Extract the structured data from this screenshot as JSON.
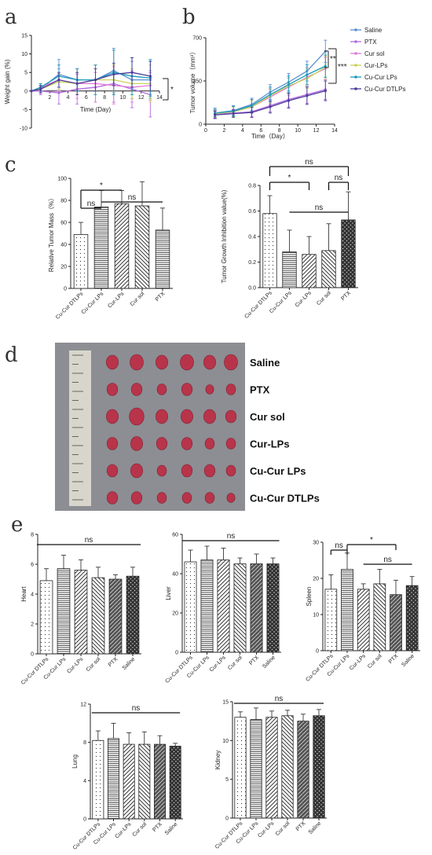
{
  "panel_labels": {
    "a": "a",
    "b": "b",
    "c": "c",
    "d": "d",
    "e": "e"
  },
  "chart_data": [
    {
      "id": "a",
      "type": "line",
      "ylabel": "Weight gain (%)",
      "xlabel": "Time  (Day)",
      "ylim": [
        -10,
        15
      ],
      "yticks": [
        -10,
        -5,
        0,
        5,
        10,
        15
      ],
      "xlim": [
        0,
        14
      ],
      "xticks": [
        2,
        4,
        6,
        8,
        10,
        12,
        14
      ],
      "series": [
        {
          "name": "Saline",
          "color": "#5b8fd0",
          "x": [
            0,
            1,
            3,
            5,
            7,
            9,
            11,
            13
          ],
          "y": [
            0,
            0.5,
            4.5,
            3,
            3,
            5.5,
            3,
            3
          ],
          "err": [
            0,
            1,
            4,
            3,
            4,
            6,
            5,
            5
          ]
        },
        {
          "name": "PTX",
          "color": "#b36be0",
          "x": [
            0,
            1,
            3,
            5,
            7,
            9,
            11,
            13
          ],
          "y": [
            0,
            0,
            -0.5,
            0.5,
            1,
            2,
            0.5,
            -1
          ],
          "err": [
            0,
            1,
            3,
            4,
            4,
            5,
            5,
            6
          ]
        },
        {
          "name": "Cur sol",
          "color": "#e07bd8",
          "x": [
            0,
            1,
            3,
            5,
            7,
            9,
            11,
            13
          ],
          "y": [
            0,
            1,
            3,
            2,
            2,
            1.5,
            1,
            1.5
          ],
          "err": [
            0,
            1,
            3,
            4,
            5,
            5,
            4,
            4
          ]
        },
        {
          "name": "Cur-LPs",
          "color": "#c9d25a",
          "x": [
            0,
            1,
            3,
            5,
            7,
            9,
            11,
            13
          ],
          "y": [
            0,
            0.5,
            2.5,
            2,
            3,
            3,
            2,
            2
          ],
          "err": [
            0,
            1,
            2,
            3,
            4,
            4,
            4,
            5
          ]
        },
        {
          "name": "Cu-Cur LPs",
          "color": "#1a9ab8",
          "x": [
            0,
            1,
            3,
            5,
            7,
            9,
            11,
            13
          ],
          "y": [
            0,
            1,
            4,
            3,
            3,
            5,
            4,
            3.5
          ],
          "err": [
            0,
            1,
            3,
            3,
            4,
            6,
            5,
            5
          ]
        },
        {
          "name": "Cu-Cur DTLPs",
          "color": "#4b3a9a",
          "x": [
            0,
            1,
            3,
            5,
            7,
            9,
            11,
            13
          ],
          "y": [
            0,
            0.5,
            3,
            2,
            3,
            4.5,
            5,
            4
          ],
          "err": [
            0,
            1,
            2,
            3,
            3,
            3,
            4,
            4
          ]
        }
      ],
      "sig": "*"
    },
    {
      "id": "b",
      "type": "line",
      "ylabel": "Tumor volume（mm³）",
      "xlabel": "Time（Day）",
      "ylim": [
        0,
        700
      ],
      "yticks": [
        0,
        350,
        700
      ],
      "xlim": [
        0,
        14
      ],
      "xticks": [
        0,
        2,
        4,
        6,
        8,
        10,
        12,
        14
      ],
      "series": [
        {
          "name": "Saline",
          "color": "#5b8fd0",
          "x": [
            1,
            3,
            5,
            7,
            9,
            11,
            13
          ],
          "y": [
            90,
            110,
            160,
            260,
            340,
            430,
            590
          ],
          "err": [
            40,
            40,
            50,
            60,
            70,
            80,
            90
          ]
        },
        {
          "name": "PTX",
          "color": "#b36be0",
          "x": [
            1,
            3,
            5,
            7,
            9,
            11,
            13
          ],
          "y": [
            80,
            90,
            100,
            150,
            200,
            240,
            280
          ],
          "err": [
            30,
            30,
            40,
            50,
            60,
            70,
            80
          ]
        },
        {
          "name": "Cur sol",
          "color": "#e07bd8",
          "x": [
            1,
            3,
            5,
            7,
            9,
            11,
            13
          ],
          "y": [
            85,
            100,
            140,
            220,
            300,
            380,
            450
          ],
          "err": [
            30,
            40,
            50,
            60,
            70,
            80,
            90
          ]
        },
        {
          "name": "Cur-LPs",
          "color": "#c9d25a",
          "x": [
            1,
            3,
            5,
            7,
            9,
            11,
            13
          ],
          "y": [
            85,
            100,
            140,
            230,
            310,
            370,
            460
          ],
          "err": [
            30,
            40,
            50,
            60,
            70,
            80,
            90
          ]
        },
        {
          "name": "Cu-Cur LPs",
          "color": "#1a9ab8",
          "x": [
            1,
            3,
            5,
            7,
            9,
            11,
            13
          ],
          "y": [
            90,
            105,
            150,
            240,
            320,
            400,
            470
          ],
          "err": [
            30,
            40,
            50,
            60,
            70,
            80,
            90
          ]
        },
        {
          "name": "Cu-Cur DTLPs",
          "color": "#4b3a9a",
          "x": [
            1,
            3,
            5,
            7,
            9,
            11,
            13
          ],
          "y": [
            75,
            85,
            95,
            140,
            190,
            230,
            270
          ],
          "err": [
            30,
            30,
            40,
            50,
            60,
            70,
            80
          ]
        }
      ],
      "sig": [
        "**",
        "***"
      ]
    },
    {
      "id": "c1",
      "type": "bar",
      "ylabel": "Relative Tumor Mass（%）",
      "ylim": [
        0,
        100
      ],
      "yticks": [
        0,
        20,
        40,
        60,
        80,
        100
      ],
      "categories": [
        "Cu-Cur DTLPs",
        "Cu-Cur LPs",
        "Cur-LPs",
        "Cur sol",
        "PTX"
      ],
      "values": [
        49,
        74,
        77,
        75,
        53
      ],
      "err": [
        11,
        15,
        12,
        22,
        20
      ],
      "sig": [
        "ns",
        "*",
        "ns"
      ]
    },
    {
      "id": "c2",
      "type": "bar",
      "ylabel": "Tumor Growth Inhibition value(%)",
      "ylim": [
        0,
        0.8
      ],
      "yticks": [
        0.0,
        0.2,
        0.4,
        0.6,
        0.8
      ],
      "categories": [
        "Cu-Cur DTLPs",
        "Cu-Cur LPs",
        "Cur-LPs",
        "Cur sol",
        "PTX"
      ],
      "values": [
        0.58,
        0.28,
        0.26,
        0.29,
        0.53
      ],
      "err": [
        0.14,
        0.17,
        0.14,
        0.21,
        0.22
      ],
      "sig": [
        "ns",
        "*",
        "ns",
        "ns"
      ]
    },
    {
      "id": "e_heart",
      "type": "bar",
      "ylabel": "Heart",
      "ylim": [
        0,
        8
      ],
      "yticks": [
        0,
        2,
        4,
        6,
        8
      ],
      "categories": [
        "Cu-Cur DTLPs",
        "Cu-Cur LPs",
        "Cur-LPs",
        "Cur sol",
        "PTX",
        "Saline"
      ],
      "values": [
        4.9,
        5.7,
        5.6,
        5.1,
        5.0,
        5.2
      ],
      "err": [
        0.8,
        0.9,
        0.7,
        0.7,
        0.3,
        0.6
      ],
      "sig": [
        "ns"
      ]
    },
    {
      "id": "e_liver",
      "type": "bar",
      "ylabel": "Liver",
      "ylim": [
        0,
        60
      ],
      "yticks": [
        0,
        20,
        40,
        60
      ],
      "categories": [
        "Cu-Cur DTLPs",
        "Cu-Cur LPs",
        "Cur-LPs",
        "Cur sol",
        "PTX",
        "Saline"
      ],
      "values": [
        46,
        47,
        47,
        45,
        45,
        45
      ],
      "err": [
        6,
        7,
        6,
        3,
        5,
        3
      ],
      "sig": [
        "ns"
      ]
    },
    {
      "id": "e_spleen",
      "type": "bar",
      "ylabel": "Spleen",
      "ylim": [
        0,
        30
      ],
      "yticks": [
        0,
        10,
        20,
        30
      ],
      "categories": [
        "Cu-Cur DTLPs",
        "Cu-Cur LPs",
        "Cur-LPs",
        "Cur sol",
        "PTX",
        "Saline"
      ],
      "values": [
        17,
        22.5,
        17,
        18.5,
        15.5,
        18
      ],
      "err": [
        4,
        4.5,
        1.5,
        4,
        4,
        2.5
      ],
      "sig": [
        "ns",
        "*",
        "ns"
      ]
    },
    {
      "id": "e_lung",
      "type": "bar",
      "ylabel": "Lung",
      "ylim": [
        0,
        12
      ],
      "yticks": [
        0,
        4,
        8,
        12
      ],
      "categories": [
        "Cu-Cur DTLPs",
        "Cu-Cur LPs",
        "Cur-LPs",
        "Cur sol",
        "PTX",
        "Saline"
      ],
      "values": [
        8.2,
        8.4,
        7.8,
        7.8,
        7.8,
        7.6
      ],
      "err": [
        1.0,
        1.6,
        1.2,
        1.3,
        0.9,
        0.3
      ],
      "sig": [
        "ns"
      ]
    },
    {
      "id": "e_kidney",
      "type": "bar",
      "ylabel": "Kidney",
      "ylim": [
        0,
        15
      ],
      "yticks": [
        0,
        5,
        10,
        15
      ],
      "categories": [
        "Cu-Cur DTLPs",
        "Cu-Cur LPs",
        "Cur-LPs",
        "Cur sol",
        "PTX",
        "Saline"
      ],
      "values": [
        13,
        12.7,
        13,
        13.2,
        12.5,
        13.2
      ],
      "err": [
        0.7,
        1.5,
        0.8,
        0.7,
        0.9,
        0.8
      ],
      "sig": [
        "ns"
      ]
    }
  ],
  "photo": {
    "rows": [
      "Saline",
      "PTX",
      "Cur sol",
      "Cur-LPs",
      "Cu-Cur LPs",
      "Cu-Cur DTLPs"
    ],
    "bg": "#8c8e93",
    "tumor": "#b8344b"
  }
}
